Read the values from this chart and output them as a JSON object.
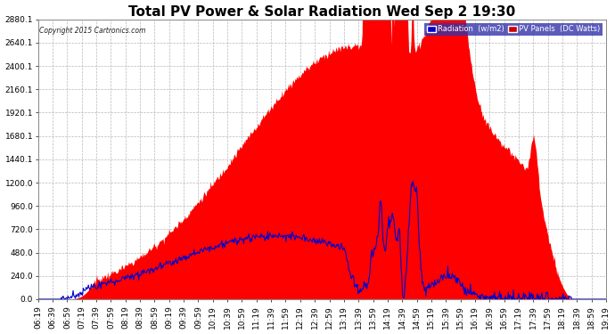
{
  "title": "Total PV Power & Solar Radiation Wed Sep 2 19:30",
  "copyright": "Copyright 2015 Cartronics.com",
  "ymin": 0.0,
  "ymax": 2880.1,
  "yticks": [
    0.0,
    240.0,
    480.0,
    720.0,
    960.0,
    1200.0,
    1440.1,
    1680.1,
    1920.1,
    2160.1,
    2400.1,
    2640.1,
    2880.1
  ],
  "pv_color": "#ff0000",
  "radiation_color": "#0000cc",
  "background_color": "#ffffff",
  "plot_bg": "#ffffff",
  "grid_color": "#aaaaaa",
  "title_fontsize": 11,
  "tick_fontsize": 6.5,
  "figwidth": 6.9,
  "figheight": 3.75
}
